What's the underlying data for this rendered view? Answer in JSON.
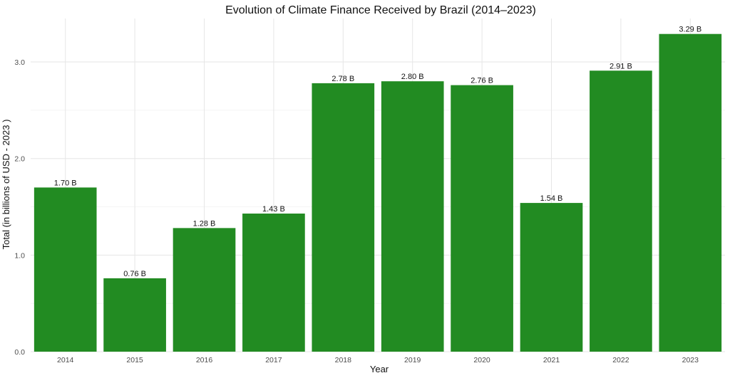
{
  "chart_data": {
    "type": "bar",
    "title": "Evolution of Climate Finance Received by Brazil (2014–2023)",
    "xlabel": "Year",
    "ylabel": "Total (in billions of USD - 2023 )",
    "categories": [
      "2014",
      "2015",
      "2016",
      "2017",
      "2018",
      "2019",
      "2020",
      "2021",
      "2022",
      "2023"
    ],
    "values": [
      1.7,
      0.76,
      1.28,
      1.43,
      2.78,
      2.8,
      2.76,
      1.54,
      2.91,
      3.29
    ],
    "data_labels": [
      "1.70 B",
      "0.76 B",
      "1.28 B",
      "1.43 B",
      "2.78 B",
      "2.80 B",
      "2.76 B",
      "1.54 B",
      "2.91 B",
      "3.29 B"
    ],
    "ylim": [
      0,
      3.45
    ],
    "yticks": [
      0,
      1,
      2,
      3
    ],
    "ytick_labels": [
      "0.0",
      "1.0",
      "2.0",
      "3.0"
    ],
    "grid": true,
    "legend": "none",
    "bar_color": "#228b22"
  }
}
